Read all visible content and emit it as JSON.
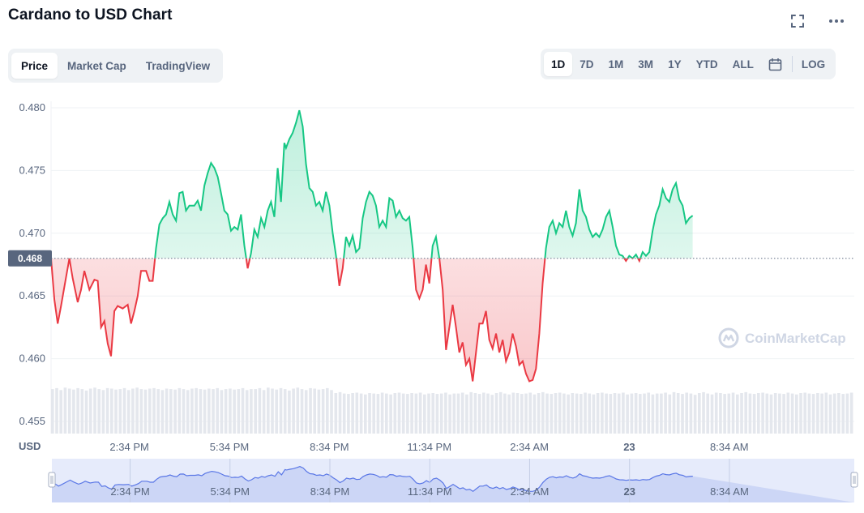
{
  "header": {
    "title": "Cardano to USD Chart",
    "fullscreen_icon": "fullscreen-icon",
    "more_icon": "more-horizontal-icon"
  },
  "chart_type_tabs": [
    {
      "label": "Price",
      "active": true
    },
    {
      "label": "Market Cap",
      "active": false
    },
    {
      "label": "TradingView",
      "active": false
    }
  ],
  "range_tabs": [
    {
      "label": "1D",
      "active": true
    },
    {
      "label": "7D",
      "active": false
    },
    {
      "label": "1M",
      "active": false
    },
    {
      "label": "3M",
      "active": false
    },
    {
      "label": "1Y",
      "active": false
    },
    {
      "label": "YTD",
      "active": false
    },
    {
      "label": "ALL",
      "active": false
    }
  ],
  "calendar_icon": "calendar-icon",
  "log_label": "LOG",
  "watermark": "CoinMarketCap",
  "colors": {
    "up": "#16c784",
    "down": "#ea3943",
    "badge": "#58667e",
    "navigator": "#5a77e6"
  },
  "chart_data": {
    "type": "line",
    "title": "Cardano to USD Chart",
    "ylabel": "USD",
    "ylim": [
      0.455,
      0.48
    ],
    "yticks": [
      0.455,
      0.46,
      0.465,
      0.47,
      0.475,
      0.48
    ],
    "ytick_labels": [
      "0.455",
      "0.460",
      "0.465",
      "0.470",
      "0.475",
      "0.480"
    ],
    "reference_price": 0.468,
    "reference_label": "0.468",
    "x_ticks": [
      "2:34 PM",
      "5:34 PM",
      "8:34 PM",
      "11:34 PM",
      "2:34 AM",
      "23",
      "8:34 AM"
    ],
    "x_tick_positions": [
      2,
      5,
      8,
      11,
      14,
      17,
      20
    ],
    "xlim": [
      -0.35,
      23.75
    ],
    "grid": true,
    "series": [
      {
        "values": [
          [
            -0.35,
            0.468
          ],
          [
            -0.25,
            0.4647
          ],
          [
            -0.15,
            0.4628
          ],
          [
            -0.05,
            0.4642
          ],
          [
            0.1,
            0.4665
          ],
          [
            0.2,
            0.468
          ],
          [
            0.3,
            0.4664
          ],
          [
            0.45,
            0.4645
          ],
          [
            0.55,
            0.4655
          ],
          [
            0.65,
            0.467
          ],
          [
            0.8,
            0.4655
          ],
          [
            0.95,
            0.4663
          ],
          [
            1.05,
            0.4662
          ],
          [
            1.15,
            0.4625
          ],
          [
            1.25,
            0.463
          ],
          [
            1.35,
            0.4612
          ],
          [
            1.45,
            0.4602
          ],
          [
            1.55,
            0.4638
          ],
          [
            1.65,
            0.4642
          ],
          [
            1.8,
            0.464
          ],
          [
            1.95,
            0.4643
          ],
          [
            2.05,
            0.4628
          ],
          [
            2.15,
            0.4638
          ],
          [
            2.25,
            0.465
          ],
          [
            2.35,
            0.467
          ],
          [
            2.5,
            0.467
          ],
          [
            2.6,
            0.4662
          ],
          [
            2.7,
            0.4662
          ],
          [
            2.8,
            0.4688
          ],
          [
            2.9,
            0.4707
          ],
          [
            3.0,
            0.4712
          ],
          [
            3.1,
            0.4715
          ],
          [
            3.2,
            0.4725
          ],
          [
            3.3,
            0.4715
          ],
          [
            3.4,
            0.471
          ],
          [
            3.5,
            0.4732
          ],
          [
            3.6,
            0.4733
          ],
          [
            3.7,
            0.4718
          ],
          [
            3.8,
            0.4722
          ],
          [
            3.95,
            0.4722
          ],
          [
            4.05,
            0.4726
          ],
          [
            4.15,
            0.4718
          ],
          [
            4.25,
            0.4738
          ],
          [
            4.35,
            0.4748
          ],
          [
            4.45,
            0.4756
          ],
          [
            4.55,
            0.4752
          ],
          [
            4.65,
            0.4745
          ],
          [
            4.75,
            0.4732
          ],
          [
            4.85,
            0.4718
          ],
          [
            4.95,
            0.4715
          ],
          [
            5.05,
            0.4702
          ],
          [
            5.15,
            0.4705
          ],
          [
            5.25,
            0.4703
          ],
          [
            5.35,
            0.4715
          ],
          [
            5.45,
            0.469
          ],
          [
            5.55,
            0.4672
          ],
          [
            5.65,
            0.4684
          ],
          [
            5.75,
            0.4703
          ],
          [
            5.85,
            0.4697
          ],
          [
            5.95,
            0.4712
          ],
          [
            6.05,
            0.4705
          ],
          [
            6.15,
            0.4718
          ],
          [
            6.25,
            0.4725
          ],
          [
            6.35,
            0.4713
          ],
          [
            6.45,
            0.4752
          ],
          [
            6.55,
            0.4725
          ],
          [
            6.65,
            0.4772
          ],
          [
            6.7,
            0.4768
          ],
          [
            6.8,
            0.4775
          ],
          [
            6.9,
            0.478
          ],
          [
            7.0,
            0.4788
          ],
          [
            7.1,
            0.4798
          ],
          [
            7.2,
            0.4785
          ],
          [
            7.3,
            0.4755
          ],
          [
            7.4,
            0.4736
          ],
          [
            7.5,
            0.4733
          ],
          [
            7.6,
            0.4722
          ],
          [
            7.7,
            0.4725
          ],
          [
            7.8,
            0.4718
          ],
          [
            7.9,
            0.4733
          ],
          [
            8.0,
            0.4722
          ],
          [
            8.1,
            0.47
          ],
          [
            8.2,
            0.4682
          ],
          [
            8.3,
            0.4658
          ],
          [
            8.4,
            0.4672
          ],
          [
            8.5,
            0.4697
          ],
          [
            8.6,
            0.469
          ],
          [
            8.7,
            0.4698
          ],
          [
            8.8,
            0.4685
          ],
          [
            8.9,
            0.4688
          ],
          [
            9.0,
            0.4712
          ],
          [
            9.1,
            0.4725
          ],
          [
            9.2,
            0.4733
          ],
          [
            9.3,
            0.473
          ],
          [
            9.4,
            0.4722
          ],
          [
            9.5,
            0.4705
          ],
          [
            9.6,
            0.471
          ],
          [
            9.7,
            0.4705
          ],
          [
            9.8,
            0.4728
          ],
          [
            9.9,
            0.4726
          ],
          [
            10.0,
            0.4713
          ],
          [
            10.1,
            0.4718
          ],
          [
            10.2,
            0.4712
          ],
          [
            10.3,
            0.471
          ],
          [
            10.4,
            0.4713
          ],
          [
            10.5,
            0.4688
          ],
          [
            10.6,
            0.4655
          ],
          [
            10.7,
            0.4648
          ],
          [
            10.8,
            0.4655
          ],
          [
            10.9,
            0.4675
          ],
          [
            11.0,
            0.466
          ],
          [
            11.1,
            0.469
          ],
          [
            11.2,
            0.4697
          ],
          [
            11.3,
            0.468
          ],
          [
            11.4,
            0.4655
          ],
          [
            11.5,
            0.4607
          ],
          [
            11.6,
            0.4625
          ],
          [
            11.7,
            0.4643
          ],
          [
            11.8,
            0.4625
          ],
          [
            11.9,
            0.4605
          ],
          [
            12.0,
            0.4613
          ],
          [
            12.1,
            0.4595
          ],
          [
            12.2,
            0.46
          ],
          [
            12.3,
            0.4582
          ],
          [
            12.4,
            0.4605
          ],
          [
            12.5,
            0.4628
          ],
          [
            12.6,
            0.4628
          ],
          [
            12.7,
            0.4638
          ],
          [
            12.8,
            0.4615
          ],
          [
            12.9,
            0.4608
          ],
          [
            13.0,
            0.462
          ],
          [
            13.1,
            0.4605
          ],
          [
            13.2,
            0.4615
          ],
          [
            13.3,
            0.4598
          ],
          [
            13.4,
            0.4605
          ],
          [
            13.5,
            0.462
          ],
          [
            13.6,
            0.461
          ],
          [
            13.7,
            0.4595
          ],
          [
            13.8,
            0.4598
          ],
          [
            13.9,
            0.4588
          ],
          [
            14.0,
            0.4582
          ],
          [
            14.1,
            0.4583
          ],
          [
            14.2,
            0.4592
          ],
          [
            14.3,
            0.462
          ],
          [
            14.4,
            0.466
          ],
          [
            14.5,
            0.4688
          ],
          [
            14.6,
            0.4705
          ],
          [
            14.7,
            0.471
          ],
          [
            14.8,
            0.47
          ],
          [
            14.9,
            0.4708
          ],
          [
            15.0,
            0.4705
          ],
          [
            15.1,
            0.4718
          ],
          [
            15.2,
            0.4705
          ],
          [
            15.3,
            0.4698
          ],
          [
            15.4,
            0.4708
          ],
          [
            15.5,
            0.4735
          ],
          [
            15.6,
            0.4718
          ],
          [
            15.7,
            0.4713
          ],
          [
            15.8,
            0.4703
          ],
          [
            15.9,
            0.4697
          ],
          [
            16.0,
            0.47
          ],
          [
            16.1,
            0.4697
          ],
          [
            16.2,
            0.4703
          ],
          [
            16.3,
            0.4713
          ],
          [
            16.4,
            0.4718
          ],
          [
            16.5,
            0.4705
          ],
          [
            16.6,
            0.469
          ],
          [
            16.7,
            0.4683
          ],
          [
            16.8,
            0.4682
          ],
          [
            16.9,
            0.4678
          ],
          [
            17.0,
            0.4682
          ],
          [
            17.1,
            0.468
          ],
          [
            17.2,
            0.4683
          ],
          [
            17.3,
            0.4678
          ],
          [
            17.4,
            0.4685
          ],
          [
            17.5,
            0.4682
          ],
          [
            17.6,
            0.4685
          ],
          [
            17.7,
            0.4702
          ],
          [
            17.8,
            0.4715
          ],
          [
            17.9,
            0.4722
          ],
          [
            18.0,
            0.4735
          ],
          [
            18.1,
            0.4728
          ],
          [
            18.2,
            0.4725
          ],
          [
            18.3,
            0.4735
          ],
          [
            18.4,
            0.474
          ],
          [
            18.5,
            0.4727
          ],
          [
            18.6,
            0.4722
          ],
          [
            18.7,
            0.4708
          ],
          [
            18.8,
            0.4712
          ],
          [
            18.9,
            0.4714
          ]
        ]
      }
    ],
    "volume_note": "volume bars shown at bottom"
  },
  "volume": {
    "values": [
      0.9,
      0.92,
      0.88,
      0.93,
      0.91,
      0.89,
      0.92,
      0.9,
      0.87,
      0.91,
      0.93,
      0.9,
      0.88,
      0.92,
      0.91,
      0.89,
      0.9,
      0.92,
      0.88,
      0.91,
      0.93,
      0.9,
      0.89,
      0.91,
      0.92,
      0.9,
      0.88,
      0.91,
      0.9,
      0.89,
      0.92,
      0.9,
      0.88,
      0.91,
      0.92,
      0.9,
      0.89,
      0.91,
      0.9,
      0.92,
      0.88,
      0.9,
      0.91,
      0.89,
      0.9,
      0.92,
      0.88,
      0.9
    ]
  },
  "navigator": {
    "x_ticks": [
      "2:34 PM",
      "5:34 PM",
      "8:34 PM",
      "11:34 PM",
      "2:34 AM",
      "23",
      "8:34 AM"
    ]
  }
}
